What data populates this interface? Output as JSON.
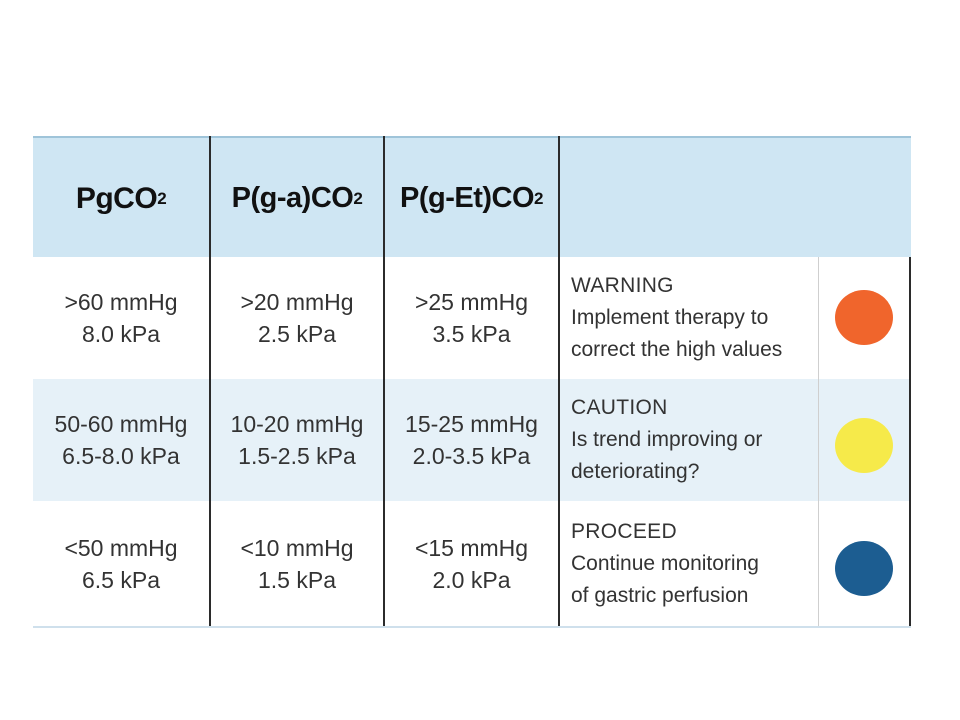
{
  "headers": [
    {
      "main": "PgCO",
      "sub": "2"
    },
    {
      "main": "P(g-a)CO",
      "sub": "2"
    },
    {
      "main": "P(g-Et)CO",
      "sub": "2"
    }
  ],
  "rows": [
    {
      "pgco2": [
        ">60 mmHg",
        "8.0 kPa"
      ],
      "pgaco2": [
        ">20 mmHg",
        "2.5 kPa"
      ],
      "pgetco2": [
        ">25 mmHg",
        "3.5 kPa"
      ],
      "status_title": "WARNING",
      "status_lines": [
        "Implement therapy to",
        "correct the high values"
      ],
      "color": "#f0652c"
    },
    {
      "pgco2": [
        "50-60 mmHg",
        "6.5-8.0 kPa"
      ],
      "pgaco2": [
        "10-20 mmHg",
        "1.5-2.5 kPa"
      ],
      "pgetco2": [
        "15-25 mmHg",
        "2.0-3.5 kPa"
      ],
      "status_title": "CAUTION",
      "status_lines": [
        "Is trend improving or",
        "deteriorating?"
      ],
      "color": "#f6ea4a"
    },
    {
      "pgco2": [
        "<50 mmHg",
        "6.5 kPa"
      ],
      "pgaco2": [
        "<10 mmHg",
        "1.5 kPa"
      ],
      "pgetco2": [
        "<15 mmHg",
        "2.0 kPa"
      ],
      "status_title": "PROCEED",
      "status_lines": [
        "Continue monitoring",
        "of gastric perfusion"
      ],
      "color": "#1c5d91"
    }
  ]
}
